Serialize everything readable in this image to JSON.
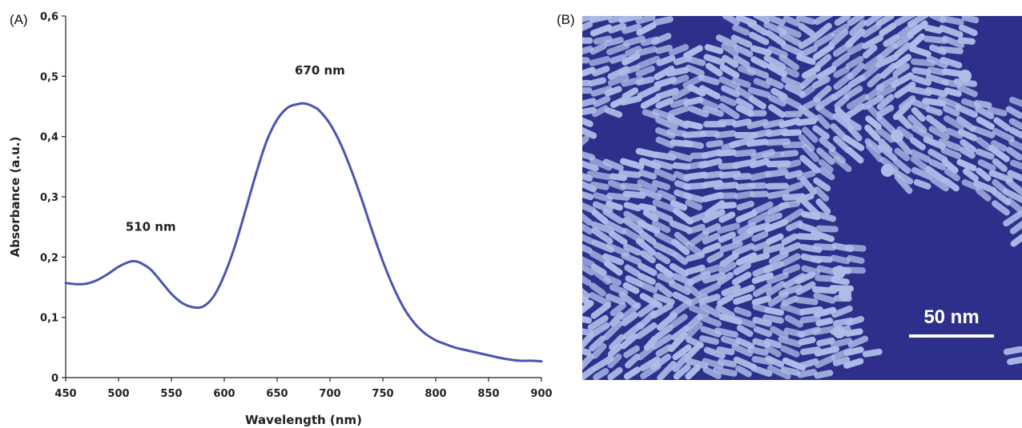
{
  "panel_a_label": "(A)",
  "panel_b_label": "(B)",
  "chart_data": {
    "type": "line",
    "xlabel": "Wavelength (nm)",
    "ylabel": "Absorbance (a.u.)",
    "xlim": [
      450,
      900
    ],
    "ylim": [
      0,
      0.6
    ],
    "x_ticks": [
      "450",
      "500",
      "550",
      "600",
      "650",
      "700",
      "750",
      "800",
      "850",
      "900"
    ],
    "y_ticks": [
      "0",
      "0,1",
      "0,2",
      "0,3",
      "0,4",
      "0,5",
      "0,6"
    ],
    "grid": false,
    "series_color": "#4a55b0",
    "annotations": [
      {
        "text": "510 nm",
        "x": 510,
        "y": 0.25
      },
      {
        "text": "670 nm",
        "x": 670,
        "y": 0.51
      }
    ],
    "series": [
      {
        "x": [
          450,
          460,
          470,
          480,
          490,
          500,
          510,
          515,
          520,
          530,
          540,
          550,
          560,
          570,
          580,
          590,
          600,
          610,
          620,
          630,
          640,
          650,
          660,
          670,
          675,
          680,
          685,
          690,
          700,
          710,
          720,
          730,
          740,
          750,
          760,
          770,
          780,
          790,
          800,
          810,
          820,
          830,
          840,
          850,
          860,
          870,
          880,
          890,
          900
        ],
        "y": [
          0.157,
          0.155,
          0.156,
          0.162,
          0.172,
          0.184,
          0.192,
          0.193,
          0.191,
          0.18,
          0.16,
          0.139,
          0.124,
          0.117,
          0.118,
          0.135,
          0.17,
          0.218,
          0.277,
          0.338,
          0.392,
          0.428,
          0.448,
          0.454,
          0.455,
          0.453,
          0.449,
          0.443,
          0.421,
          0.388,
          0.345,
          0.296,
          0.243,
          0.193,
          0.15,
          0.115,
          0.09,
          0.073,
          0.062,
          0.055,
          0.049,
          0.045,
          0.041,
          0.037,
          0.033,
          0.03,
          0.028,
          0.028,
          0.027
        ]
      }
    ]
  },
  "micrograph": {
    "background_color": "#2d2f8a",
    "particle_color": "#aebde8",
    "scale_bar_label": "50 nm"
  }
}
